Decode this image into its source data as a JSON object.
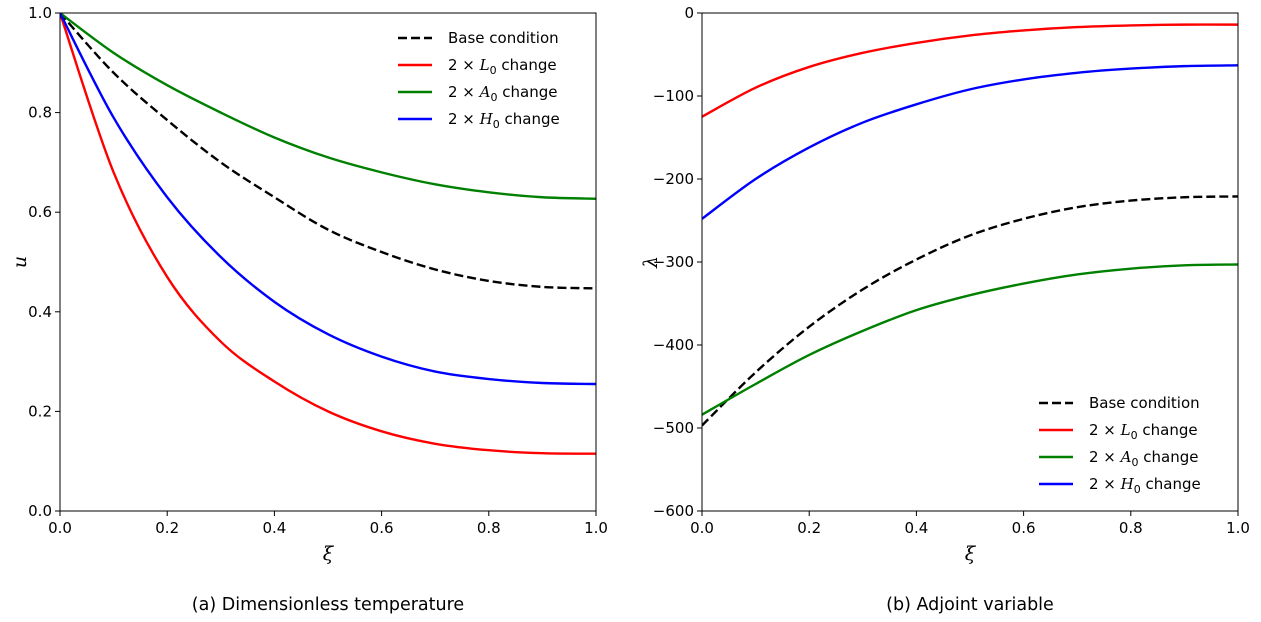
{
  "chart_data": [
    {
      "type": "line",
      "caption": "(a) Dimensionless temperature",
      "xlabel": "ξ",
      "ylabel": "u",
      "xlim": [
        0,
        1
      ],
      "ylim": [
        0,
        1
      ],
      "xticks": [
        0.0,
        0.2,
        0.4,
        0.6,
        0.8,
        1.0
      ],
      "yticks": [
        0.0,
        0.2,
        0.4,
        0.6,
        0.8,
        1.0
      ],
      "x_tick_labels": [
        "0.0",
        "0.2",
        "0.4",
        "0.6",
        "0.8",
        "1.0"
      ],
      "y_tick_labels": [
        "0.0",
        "0.2",
        "0.4",
        "0.6",
        "0.8",
        "1.0"
      ],
      "legend_position": "top-right",
      "grid": false,
      "x": [
        0.0,
        0.1,
        0.2,
        0.3,
        0.4,
        0.5,
        0.6,
        0.7,
        0.8,
        0.9,
        1.0
      ],
      "series": [
        {
          "name": "Base condition",
          "color": "#000000",
          "dashed": true,
          "legend": {
            "prefix": "",
            "sym": "",
            "sub": "",
            "suffix": "Base condition"
          },
          "values": [
            1.0,
            0.88,
            0.785,
            0.7,
            0.63,
            0.565,
            0.52,
            0.485,
            0.462,
            0.45,
            0.447
          ]
        },
        {
          "name": "2 × L0 change",
          "color": "#ff0000",
          "dashed": false,
          "legend": {
            "prefix": "2 × ",
            "sym": "L",
            "sub": "0",
            "suffix": " change"
          },
          "values": [
            1.0,
            0.68,
            0.47,
            0.34,
            0.26,
            0.2,
            0.16,
            0.135,
            0.122,
            0.116,
            0.115
          ]
        },
        {
          "name": "2 × A0 change",
          "color": "#008000",
          "dashed": false,
          "legend": {
            "prefix": "2 × ",
            "sym": "A",
            "sub": "0",
            "suffix": " change"
          },
          "values": [
            1.0,
            0.92,
            0.855,
            0.8,
            0.75,
            0.71,
            0.68,
            0.656,
            0.64,
            0.63,
            0.627
          ]
        },
        {
          "name": "2 × H0 change",
          "color": "#0000ff",
          "dashed": false,
          "legend": {
            "prefix": "2 × ",
            "sym": "H",
            "sub": "0",
            "suffix": " change"
          },
          "values": [
            1.0,
            0.79,
            0.63,
            0.51,
            0.42,
            0.355,
            0.31,
            0.28,
            0.265,
            0.257,
            0.255
          ]
        }
      ]
    },
    {
      "type": "line",
      "caption": "(b) Adjoint variable",
      "xlabel": "ξ",
      "ylabel": "λ",
      "xlim": [
        0,
        1
      ],
      "ylim": [
        -600,
        0
      ],
      "xticks": [
        0.0,
        0.2,
        0.4,
        0.6,
        0.8,
        1.0
      ],
      "yticks": [
        -600,
        -500,
        -400,
        -300,
        -200,
        -100,
        0
      ],
      "x_tick_labels": [
        "0.0",
        "0.2",
        "0.4",
        "0.6",
        "0.8",
        "1.0"
      ],
      "y_tick_labels": [
        "−600",
        "−500",
        "−400",
        "−300",
        "−200",
        "−100",
        "0"
      ],
      "legend_position": "bottom-right",
      "grid": false,
      "x": [
        0.0,
        0.1,
        0.2,
        0.3,
        0.4,
        0.5,
        0.6,
        0.7,
        0.8,
        0.9,
        1.0
      ],
      "series": [
        {
          "name": "Base condition",
          "color": "#000000",
          "dashed": true,
          "legend": {
            "prefix": "",
            "sym": "",
            "sub": "",
            "suffix": "Base condition"
          },
          "values": [
            -497,
            -433,
            -378,
            -333,
            -297,
            -268,
            -248,
            -234,
            -226,
            -222,
            -221
          ]
        },
        {
          "name": "2 × L0 change",
          "color": "#ff0000",
          "dashed": false,
          "legend": {
            "prefix": "2 × ",
            "sym": "L",
            "sub": "0",
            "suffix": " change"
          },
          "values": [
            -125,
            -90,
            -65,
            -48,
            -36,
            -27,
            -21,
            -17,
            -15,
            -14,
            -14
          ]
        },
        {
          "name": "2 × A0 change",
          "color": "#008000",
          "dashed": false,
          "legend": {
            "prefix": "2 × ",
            "sym": "A",
            "sub": "0",
            "suffix": " change"
          },
          "values": [
            -484,
            -447,
            -412,
            -383,
            -358,
            -340,
            -326,
            -315,
            -308,
            -304,
            -303
          ]
        },
        {
          "name": "2 × H0 change",
          "color": "#0000ff",
          "dashed": false,
          "legend": {
            "prefix": "2 × ",
            "sym": "H",
            "sub": "0",
            "suffix": " change"
          },
          "values": [
            -248,
            -200,
            -162,
            -132,
            -110,
            -92,
            -80,
            -72,
            -67,
            -64,
            -63
          ]
        }
      ]
    }
  ]
}
